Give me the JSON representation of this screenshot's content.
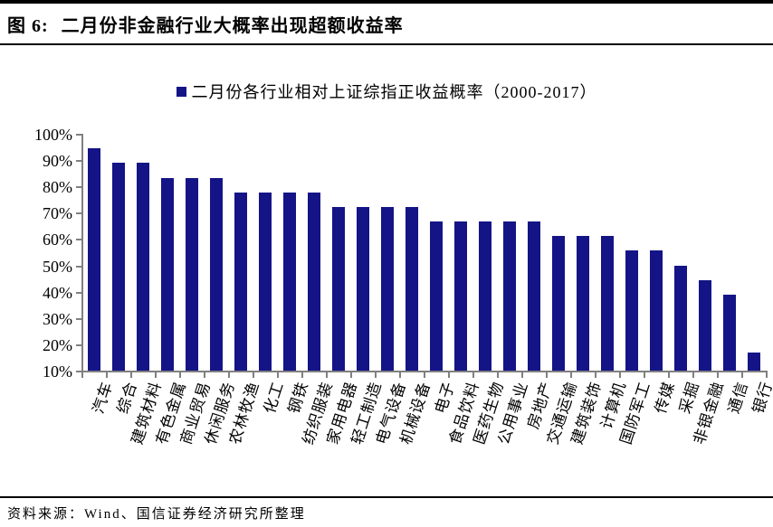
{
  "page": {
    "title_prefix": "图 6:",
    "title": "二月份非金融行业大概率出现超额收益率",
    "source_note": "资料来源：Wind、国信证券经济研究所整理"
  },
  "legend": {
    "label": "二月份各行业相对上证综指正收益概率（2000-2017）"
  },
  "colors": {
    "bar": "#141487",
    "axis": "#808080",
    "text": "#000000",
    "divider": "#000000"
  },
  "chart_data": {
    "type": "bar",
    "title": "二月份各行业相对上证综指正收益概率（2000-2017）",
    "categories": [
      "汽车",
      "综合",
      "建筑材料",
      "有色金属",
      "商业贸易",
      "休闲服务",
      "农林牧渔",
      "化工",
      "钢铁",
      "纺织服装",
      "家用电器",
      "轻工制造",
      "电气设备",
      "机械设备",
      "电子",
      "食品饮料",
      "医药生物",
      "公用事业",
      "房地产",
      "交通运输",
      "建筑装饰",
      "计算机",
      "国防军工",
      "传媒",
      "采掘",
      "非银金融",
      "通信",
      "银行"
    ],
    "values": [
      94.4,
      88.9,
      88.9,
      83.3,
      83.3,
      83.3,
      77.8,
      77.8,
      77.8,
      77.8,
      72.2,
      72.2,
      72.2,
      72.2,
      66.7,
      66.7,
      66.7,
      66.7,
      66.7,
      61.1,
      61.1,
      61.1,
      55.6,
      55.6,
      50.0,
      44.4,
      38.9,
      16.7
    ],
    "unit": "%",
    "xlabel": "",
    "ylabel": "",
    "ylim": [
      10,
      100
    ],
    "yticks": [
      "10%",
      "20%",
      "30%",
      "40%",
      "50%",
      "60%",
      "70%",
      "80%",
      "90%",
      "100%"
    ],
    "grid": false,
    "legend_position": "top",
    "bar_color": "#141487"
  }
}
